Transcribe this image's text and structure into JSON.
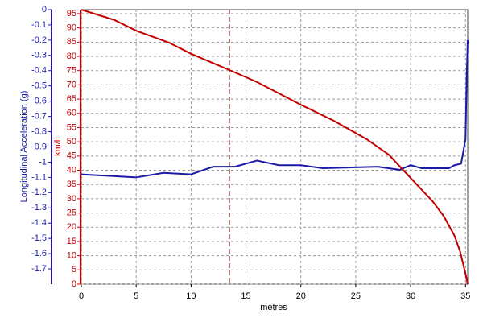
{
  "chart_data": {
    "type": "line",
    "x_label": "metres",
    "y_label": "Longitudinal Acceleration (g)",
    "y2_label": "km/h",
    "xlim": [
      0,
      35.2
    ],
    "xticks": [
      0,
      5,
      10,
      15,
      20,
      25,
      30,
      35
    ],
    "ylim": [
      -1.8,
      0
    ],
    "yticks": [
      0,
      -0.1,
      -0.2,
      -0.3,
      -0.4,
      -0.5,
      -0.6,
      -0.7,
      -0.8,
      -0.9,
      -1,
      -1.1,
      -1.2,
      -1.3,
      -1.4,
      -1.5,
      -1.6,
      -1.7
    ],
    "y2lim": [
      0,
      96.4
    ],
    "y2ticks": [
      0,
      5,
      10,
      15,
      20,
      25,
      30,
      35,
      40,
      45,
      50,
      55,
      60,
      65,
      70,
      75,
      80,
      85,
      90,
      95
    ],
    "grid": true,
    "y_color": "#1a1aa6",
    "y2_color": "#c00000",
    "cursor_x": 13.5,
    "series": [
      {
        "color": "#1a1aa6",
        "axis": "y",
        "x": [
          0,
          5,
          7.5,
          10,
          12,
          14,
          16,
          18,
          20,
          22,
          27,
          29,
          30,
          31,
          33.5,
          34,
          34.6,
          35,
          35.1,
          35.2
        ],
        "values": [
          -1.08,
          -1.1,
          -1.07,
          -1.08,
          -1.03,
          -1.03,
          -0.99,
          -1.02,
          -1.02,
          -1.04,
          -1.03,
          -1.05,
          -1.02,
          -1.04,
          -1.04,
          -1.02,
          -1.01,
          -0.85,
          -0.46,
          -0.2
        ]
      },
      {
        "color": "#c00000",
        "axis": "y2",
        "x": [
          0,
          3,
          5,
          8,
          10,
          13.5,
          16,
          20,
          23,
          26,
          28,
          30,
          32,
          33,
          34,
          34.5,
          35,
          35.2
        ],
        "values": [
          96.4,
          92.8,
          89,
          84.8,
          80.9,
          75.2,
          71,
          63,
          57.4,
          50.9,
          45.5,
          37.3,
          29.1,
          24,
          17,
          11.6,
          3.7,
          0
        ]
      }
    ]
  }
}
